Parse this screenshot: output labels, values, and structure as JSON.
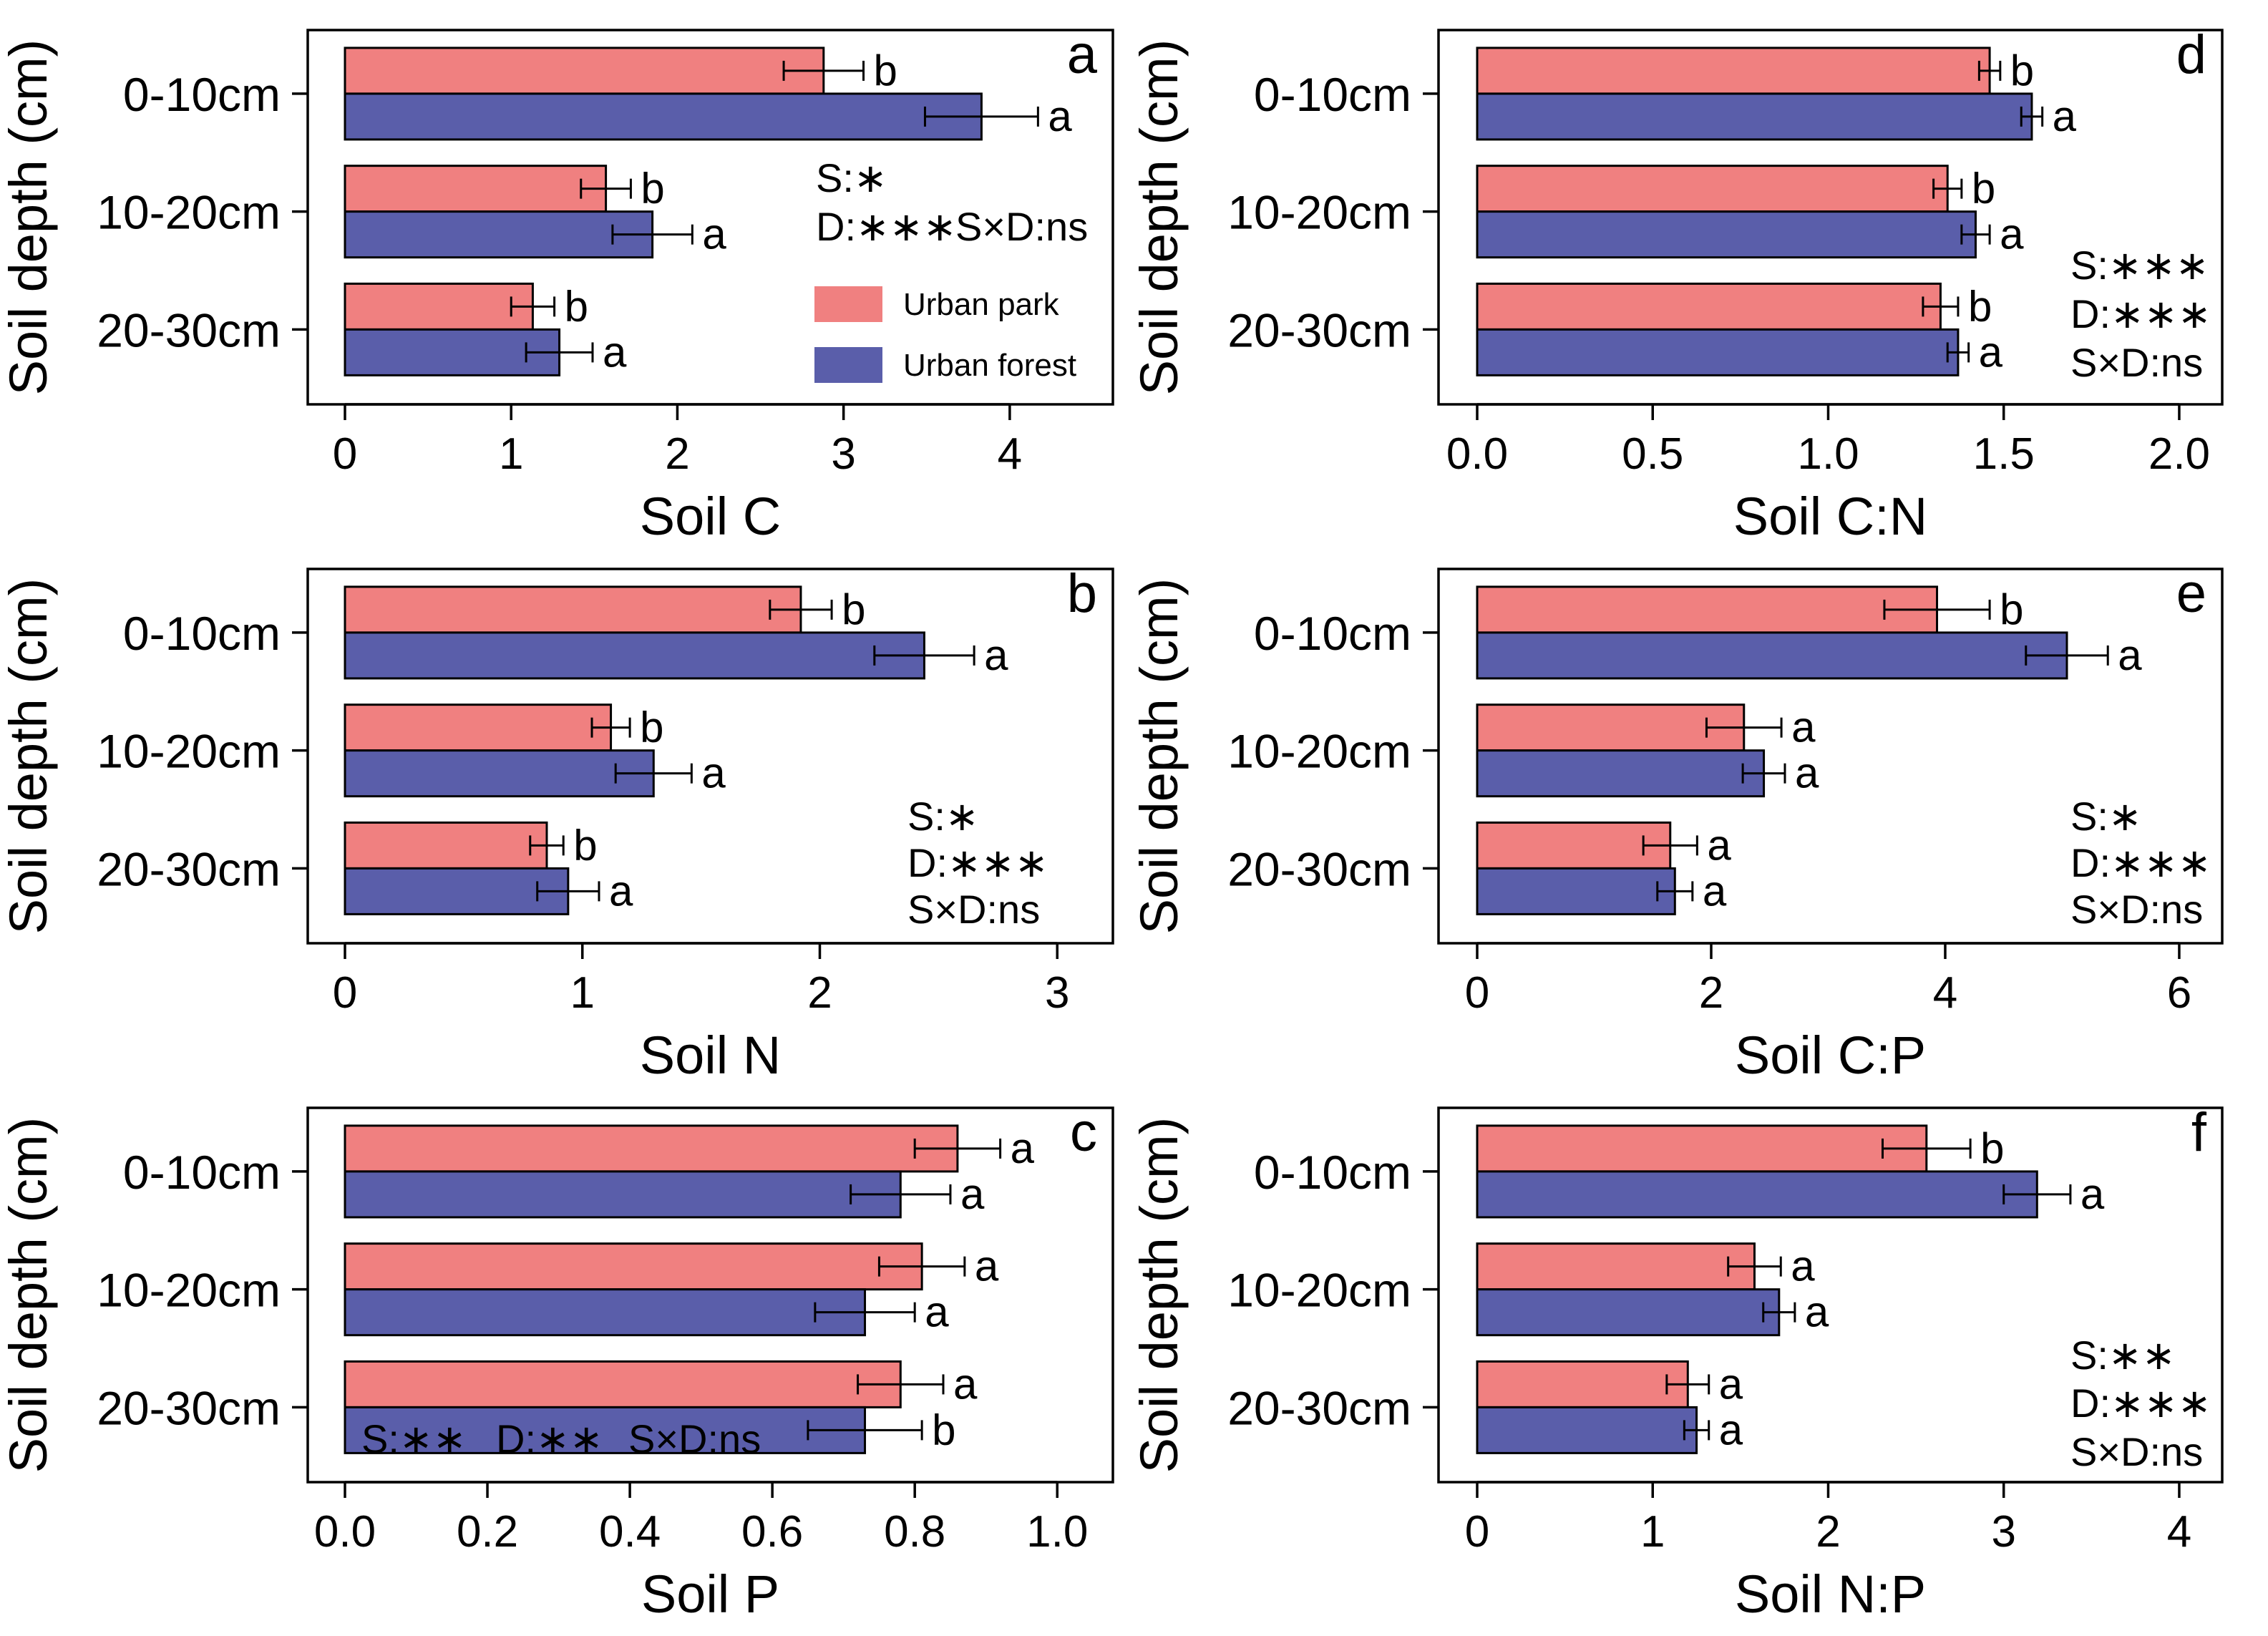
{
  "chart_data": {
    "type": "bar",
    "orientation": "horizontal",
    "colors": {
      "urban_park": "#F08080",
      "urban_forest": "#5A5EAA"
    },
    "legend": {
      "entries": [
        "Urban park",
        "Urban forest"
      ],
      "placement": "panel a, lower-right"
    },
    "categories": [
      "0-10cm",
      "10-20cm",
      "20-30cm"
    ],
    "ylabel": "Soil depth (cm)",
    "panels": [
      {
        "id": "a",
        "letter": "a",
        "xlabel": "Soil C",
        "xlim": [
          0,
          4.5
        ],
        "xticks": [
          0,
          1,
          2,
          3,
          4
        ],
        "xtick_labels": [
          "0",
          "1",
          "2",
          "3",
          "4"
        ],
        "series": [
          {
            "name": "Urban park",
            "values": [
              2.88,
              1.57,
              1.13
            ],
            "errors": [
              0.24,
              0.15,
              0.13
            ],
            "letters": [
              "b",
              "b",
              "b"
            ]
          },
          {
            "name": "Urban forest",
            "values": [
              3.83,
              1.85,
              1.29
            ],
            "errors": [
              0.34,
              0.24,
              0.2
            ],
            "letters": [
              "a",
              "a",
              "a"
            ]
          }
        ],
        "stats": [
          "S:∗",
          "D:∗∗∗",
          "S×D:ns"
        ]
      },
      {
        "id": "b",
        "letter": "b",
        "xlabel": "Soil N",
        "xlim": [
          0,
          3.15
        ],
        "xticks": [
          0,
          1,
          2,
          3
        ],
        "xtick_labels": [
          "0",
          "1",
          "2",
          "3"
        ],
        "series": [
          {
            "name": "Urban park",
            "values": [
              1.92,
              1.12,
              0.85
            ],
            "errors": [
              0.13,
              0.08,
              0.07
            ],
            "letters": [
              "b",
              "b",
              "b"
            ]
          },
          {
            "name": "Urban forest",
            "values": [
              2.44,
              1.3,
              0.94
            ],
            "errors": [
              0.21,
              0.16,
              0.13
            ],
            "letters": [
              "a",
              "a",
              "a"
            ]
          }
        ],
        "stats": [
          "S:∗",
          "D:∗∗∗",
          "S×D:ns"
        ]
      },
      {
        "id": "c",
        "letter": "c",
        "xlabel": "Soil P",
        "xlim": [
          0,
          1.05
        ],
        "xticks": [
          0,
          0.2,
          0.4,
          0.6,
          0.8,
          1.0
        ],
        "xtick_labels": [
          "0.0",
          "0.2",
          "0.4",
          "0.6",
          "0.8",
          "1.0"
        ],
        "series": [
          {
            "name": "Urban park",
            "values": [
              0.86,
              0.81,
              0.78
            ],
            "errors": [
              0.06,
              0.06,
              0.06
            ],
            "letters": [
              "a",
              "a",
              "a"
            ]
          },
          {
            "name": "Urban forest",
            "values": [
              0.78,
              0.73,
              0.73
            ],
            "errors": [
              0.07,
              0.07,
              0.08
            ],
            "letters": [
              "a",
              "a",
              "b"
            ]
          }
        ],
        "stats": [
          "S:∗∗",
          "D:∗∗",
          "S×D:ns"
        ]
      },
      {
        "id": "d",
        "letter": "d",
        "xlabel": "Soil C:N",
        "xlim": [
          0,
          2.1
        ],
        "xticks": [
          0,
          0.5,
          1.0,
          1.5,
          2.0
        ],
        "xtick_labels": [
          "0.0",
          "0.5",
          "1.0",
          "1.5",
          "2.0"
        ],
        "series": [
          {
            "name": "Urban park",
            "values": [
              1.46,
              1.34,
              1.32
            ],
            "errors": [
              0.03,
              0.04,
              0.05
            ],
            "letters": [
              "b",
              "b",
              "b"
            ]
          },
          {
            "name": "Urban forest",
            "values": [
              1.58,
              1.42,
              1.37
            ],
            "errors": [
              0.03,
              0.04,
              0.03
            ],
            "letters": [
              "a",
              "a",
              "a"
            ]
          }
        ],
        "stats": [
          "S:∗∗∗",
          "D:∗∗∗",
          "S×D:ns"
        ]
      },
      {
        "id": "e",
        "letter": "e",
        "xlabel": "Soil C:P",
        "xlim": [
          0,
          6.3
        ],
        "xticks": [
          0,
          2,
          4,
          6
        ],
        "xtick_labels": [
          "0",
          "2",
          "4",
          "6"
        ],
        "series": [
          {
            "name": "Urban park",
            "values": [
              3.93,
              2.28,
              1.65
            ],
            "errors": [
              0.45,
              0.32,
              0.23
            ],
            "letters": [
              "b",
              "a",
              "a"
            ]
          },
          {
            "name": "Urban forest",
            "values": [
              5.04,
              2.45,
              1.69
            ],
            "errors": [
              0.35,
              0.18,
              0.15
            ],
            "letters": [
              "a",
              "a",
              "a"
            ]
          }
        ],
        "stats": [
          "S:∗",
          "D:∗∗∗",
          "S×D:ns"
        ]
      },
      {
        "id": "f",
        "letter": "f",
        "xlabel": "Soil N:P",
        "xlim": [
          0,
          4.2
        ],
        "xticks": [
          0,
          1,
          2,
          3,
          4
        ],
        "xtick_labels": [
          "0",
          "1",
          "2",
          "3",
          "4"
        ],
        "series": [
          {
            "name": "Urban park",
            "values": [
              2.56,
              1.58,
              1.2
            ],
            "errors": [
              0.25,
              0.15,
              0.12
            ],
            "letters": [
              "b",
              "a",
              "a"
            ]
          },
          {
            "name": "Urban forest",
            "values": [
              3.19,
              1.72,
              1.25
            ],
            "errors": [
              0.19,
              0.09,
              0.07
            ],
            "letters": [
              "a",
              "a",
              "a"
            ]
          }
        ],
        "stats": [
          "S:∗∗",
          "D:∗∗∗",
          "S×D:ns"
        ]
      }
    ]
  }
}
